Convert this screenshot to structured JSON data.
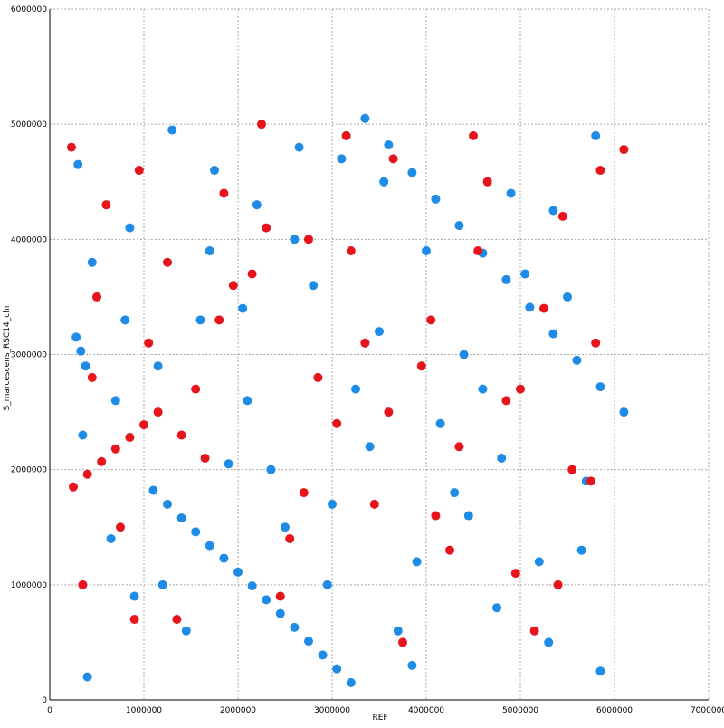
{
  "chart_data": {
    "type": "scatter",
    "xlabel": "REF",
    "ylabel": "S_marcescens_RSC14_chr",
    "xlim": [
      0,
      7000000
    ],
    "ylim": [
      0,
      6000000
    ],
    "xticks": [
      0,
      1000000,
      2000000,
      3000000,
      4000000,
      5000000,
      6000000,
      7000000
    ],
    "yticks": [
      0,
      1000000,
      2000000,
      3000000,
      4000000,
      5000000,
      6000000
    ],
    "grid": true,
    "series": [
      {
        "color": "#1e8ce6",
        "x": [
          1100000,
          1250000,
          1400000,
          1550000,
          1700000,
          1850000,
          2000000,
          2150000,
          2300000,
          2450000,
          2600000,
          2750000,
          2900000,
          3050000,
          3200000,
          3350000,
          3600000,
          3850000,
          4100000,
          4350000,
          4600000,
          4850000,
          5100000,
          5350000,
          5600000,
          5850000,
          280000,
          330000,
          380000,
          6100000,
          300000,
          450000,
          700000,
          900000,
          1300000,
          1600000,
          1900000,
          2200000,
          2500000,
          2800000,
          3100000,
          3400000,
          3700000,
          4000000,
          4300000,
          4600000,
          4900000,
          5200000,
          5500000,
          5800000,
          400000,
          650000,
          850000,
          1150000,
          1450000,
          1750000,
          2050000,
          2350000,
          2650000,
          2950000,
          3250000,
          3550000,
          3850000,
          4150000,
          4450000,
          4750000,
          5050000,
          5350000,
          5650000,
          5850000,
          350000,
          800000,
          1200000,
          1700000,
          2100000,
          2600000,
          3000000,
          3500000,
          3900000,
          4400000,
          4800000,
          5300000,
          5700000
        ],
        "values": [
          1820000,
          1700000,
          1580000,
          1460000,
          1340000,
          1230000,
          1110000,
          990000,
          870000,
          750000,
          630000,
          510000,
          390000,
          270000,
          150000,
          5050000,
          4820000,
          4580000,
          4350000,
          4120000,
          3880000,
          3650000,
          3410000,
          3180000,
          2950000,
          2720000,
          3150000,
          3030000,
          2900000,
          2500000,
          4650000,
          3800000,
          2600000,
          900000,
          4950000,
          3300000,
          2050000,
          4300000,
          1500000,
          3600000,
          4700000,
          2200000,
          600000,
          3900000,
          1800000,
          2700000,
          4400000,
          1200000,
          3500000,
          4900000,
          200000,
          1400000,
          4100000,
          2900000,
          600000,
          4600000,
          3400000,
          2000000,
          4800000,
          1000000,
          2700000,
          4500000,
          300000,
          2400000,
          1600000,
          800000,
          3700000,
          4250000,
          1300000,
          250000,
          2300000,
          3300000,
          1000000,
          3900000,
          2600000,
          4000000,
          1700000,
          3200000,
          1200000,
          3000000,
          2100000,
          500000,
          1900000
        ]
      },
      {
        "color": "#e8141c",
        "x": [
          250000,
          400000,
          550000,
          700000,
          850000,
          1000000,
          1150000,
          6100000,
          230000,
          500000,
          750000,
          950000,
          1250000,
          1550000,
          1850000,
          2150000,
          2450000,
          2750000,
          3050000,
          3350000,
          3650000,
          3950000,
          4250000,
          4550000,
          4850000,
          5150000,
          5450000,
          5750000,
          350000,
          600000,
          1050000,
          1350000,
          1650000,
          1950000,
          2250000,
          2550000,
          2850000,
          3150000,
          3450000,
          3750000,
          4050000,
          4350000,
          4650000,
          4950000,
          5250000,
          5550000,
          5850000,
          450000,
          900000,
          1400000,
          1800000,
          2300000,
          2700000,
          3200000,
          3600000,
          4100000,
          4500000,
          5000000,
          5400000,
          5800000
        ],
        "values": [
          1850000,
          1960000,
          2070000,
          2180000,
          2280000,
          2390000,
          2500000,
          4780000,
          4800000,
          3500000,
          1500000,
          4600000,
          3800000,
          2700000,
          4400000,
          3700000,
          900000,
          4000000,
          2400000,
          3100000,
          4700000,
          2900000,
          1300000,
          3900000,
          2600000,
          600000,
          4200000,
          1900000,
          1000000,
          4300000,
          3100000,
          700000,
          2100000,
          3600000,
          5000000,
          1400000,
          2800000,
          4900000,
          1700000,
          500000,
          3300000,
          2200000,
          4500000,
          1100000,
          3400000,
          2000000,
          4600000,
          2800000,
          700000,
          2300000,
          3300000,
          4100000,
          1800000,
          3900000,
          2500000,
          1600000,
          4900000,
          2700000,
          1000000,
          3100000
        ]
      }
    ]
  }
}
